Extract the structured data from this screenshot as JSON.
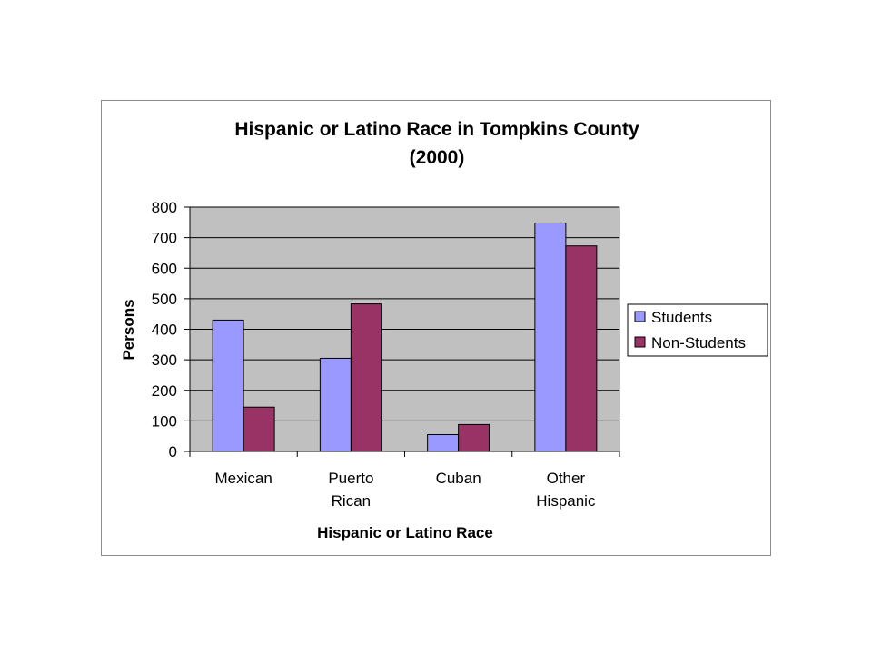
{
  "chart_data": {
    "type": "bar",
    "title": [
      "Hispanic or Latino Race in Tompkins County",
      "(2000)"
    ],
    "xlabel": "Hispanic or Latino Race",
    "ylabel": "Persons",
    "categories": [
      [
        "Mexican"
      ],
      [
        "Puerto",
        "Rican"
      ],
      [
        "Cuban"
      ],
      [
        "Other",
        "Hispanic"
      ]
    ],
    "series": [
      {
        "name": "Students",
        "values": [
          430,
          305,
          55,
          748
        ],
        "color": "#9999ff"
      },
      {
        "name": "Non-Students",
        "values": [
          145,
          483,
          88,
          673
        ],
        "color": "#993366"
      }
    ],
    "ylim": [
      0,
      800
    ],
    "yticks": [
      0,
      100,
      200,
      300,
      400,
      500,
      600,
      700,
      800
    ],
    "grid": true,
    "plot_background": "#c0c0c0",
    "legend": "right"
  }
}
